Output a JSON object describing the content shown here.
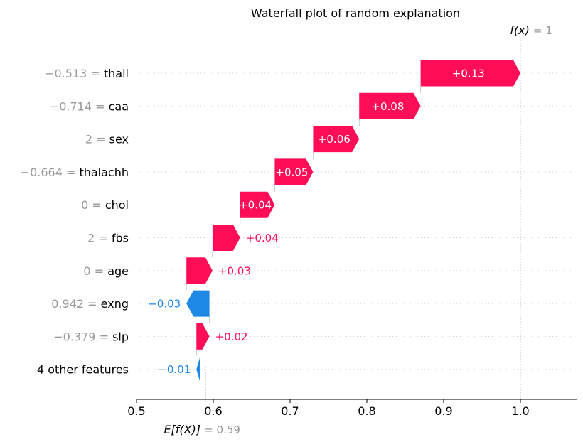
{
  "chart_data": {
    "type": "waterfall",
    "title": "Waterfall plot of random explanation",
    "base_value": 0.59,
    "output_value": 1,
    "base_label": {
      "sym": "E[f(X)]",
      "eq": "= 0.59"
    },
    "output_label": {
      "sym": "f(x)",
      "eq": "= 1"
    },
    "xlim": [
      0.5,
      1.075
    ],
    "xticks": [
      "0.5",
      "0.6",
      "0.7",
      "0.8",
      "0.9",
      "1.0"
    ],
    "colors": {
      "positive": "#ff0d57",
      "negative": "#1e88e5",
      "label_value": "#999999"
    },
    "features": [
      {
        "value_text": "−0.513 = ",
        "name": "thall",
        "shap": 0.13,
        "label": "+0.13"
      },
      {
        "value_text": "−0.714 = ",
        "name": "caa",
        "shap": 0.08,
        "label": "+0.08"
      },
      {
        "value_text": "2 = ",
        "name": "sex",
        "shap": 0.06,
        "label": "+0.06"
      },
      {
        "value_text": "−0.664 = ",
        "name": "thalachh",
        "shap": 0.05,
        "label": "+0.05"
      },
      {
        "value_text": "0 = ",
        "name": "chol",
        "shap": 0.045,
        "label": "+0.04"
      },
      {
        "value_text": "2 = ",
        "name": "fbs",
        "shap": 0.036,
        "label": "+0.04"
      },
      {
        "value_text": "0 = ",
        "name": "age",
        "shap": 0.034,
        "label": "+0.03"
      },
      {
        "value_text": "0.942 = ",
        "name": "exng",
        "shap": -0.03,
        "label": "−0.03"
      },
      {
        "value_text": "−0.379 = ",
        "name": "slp",
        "shap": 0.017,
        "label": "+0.02"
      },
      {
        "value_text": "",
        "name": "4 other features",
        "shap": -0.005,
        "label": "−0.01"
      }
    ]
  }
}
